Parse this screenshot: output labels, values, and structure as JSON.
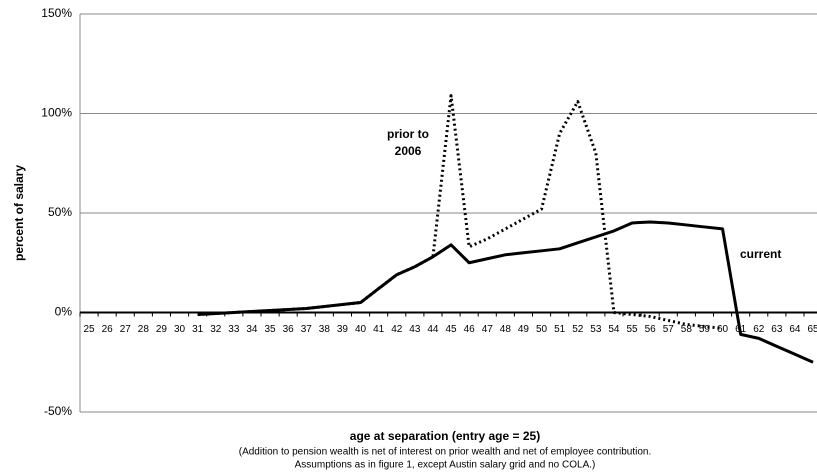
{
  "chart_data": {
    "type": "line",
    "x_label": "age at separation (entry age = 25)",
    "note": [
      "(Addition to pension wealth is net of interest on prior wealth and net of employee contribution.",
      "Assumptions as in figure 1, except Austin salary grid and no COLA.)"
    ],
    "y_label": "percent of salary",
    "annotations": [
      "prior to",
      "2006",
      "current"
    ],
    "categories": [
      "25",
      "26",
      "27",
      "28",
      "29",
      "30",
      "31",
      "32",
      "33",
      "34",
      "35",
      "36",
      "37",
      "38",
      "39",
      "40",
      "41",
      "42",
      "43",
      "44",
      "45",
      "46",
      "47",
      "48",
      "49",
      "50",
      "51",
      "52",
      "53",
      "54",
      "55",
      "56",
      "57",
      "58",
      "59",
      "60",
      "61",
      "62",
      "63",
      "64",
      "65"
    ],
    "series": [
      {
        "name": "current",
        "color": "#000000",
        "dash": false,
        "values": [
          null,
          null,
          null,
          null,
          null,
          null,
          -1,
          -0.5,
          0,
          0.5,
          1,
          1.5,
          2,
          3,
          4,
          5,
          12,
          19,
          23,
          28,
          34,
          25,
          27,
          29,
          30,
          31,
          32,
          35,
          38,
          41,
          45,
          45.5,
          45,
          44,
          43,
          42,
          -11,
          -13,
          -17,
          -21,
          -25
        ]
      },
      {
        "name": "prior to 2006",
        "color": "#000000",
        "dash": true,
        "values": [
          null,
          null,
          null,
          null,
          null,
          null,
          -1,
          -0.5,
          0,
          0.5,
          1,
          1.5,
          2,
          3,
          4,
          5,
          12,
          19,
          23,
          28,
          109,
          33,
          37,
          42,
          47,
          52,
          90,
          106,
          80,
          0,
          -1,
          -2,
          -4,
          -6,
          -7,
          -8,
          null,
          null,
          null,
          null,
          null
        ]
      }
    ],
    "ylim": [
      -50,
      150
    ],
    "yticks": [
      {
        "value": -50,
        "label": "-50%"
      },
      {
        "value": 0,
        "label": "0%"
      },
      {
        "value": 50,
        "label": "50%"
      },
      {
        "value": 100,
        "label": "100%"
      },
      {
        "value": 150,
        "label": "150%"
      }
    ],
    "grid": true
  }
}
